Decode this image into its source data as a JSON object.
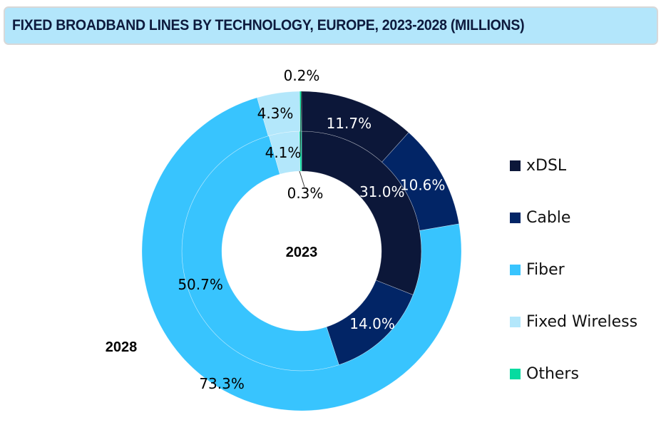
{
  "chart_data": {
    "type": "pie",
    "variant": "nested-donut",
    "title": "FIXED BROADBAND LINES BY TECHNOLOGY, EUROPE, 2023-2028 (MILLIONS)",
    "categories": [
      "xDSL",
      "Cable",
      "Fiber",
      "Fixed Wireless",
      "Others"
    ],
    "colors": [
      "#0c1739",
      "#022566",
      "#38c4fe",
      "#b3e7fb",
      "#06dba0"
    ],
    "series": [
      {
        "name": "2023",
        "ring": "inner",
        "values": [
          31.0,
          14.0,
          50.7,
          4.1,
          0.3
        ],
        "labels": [
          "31.0%",
          "14.0%",
          "50.7%",
          "4.1%",
          "0.3%"
        ]
      },
      {
        "name": "2028",
        "ring": "outer",
        "values": [
          11.7,
          10.6,
          73.3,
          4.3,
          0.2
        ],
        "labels": [
          "11.7%",
          "10.6%",
          "73.3%",
          "4.3%",
          "0.2%"
        ]
      }
    ],
    "center_label": "2023",
    "outer_label": "2028",
    "legend_position": "right",
    "label_colors": {
      "dark": "#ffffff",
      "light": "#000000"
    }
  },
  "legend": [
    {
      "label": "xDSL",
      "color": "#0c1739"
    },
    {
      "label": "Cable",
      "color": "#022566"
    },
    {
      "label": "Fiber",
      "color": "#38c4fe"
    },
    {
      "label": "Fixed Wireless",
      "color": "#b3e7fb"
    },
    {
      "label": "Others",
      "color": "#06dba0"
    }
  ]
}
